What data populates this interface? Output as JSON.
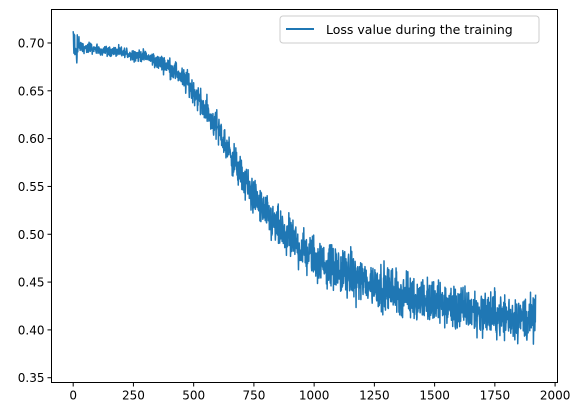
{
  "chart_data": {
    "type": "line",
    "title": "",
    "xlabel": "",
    "ylabel": "",
    "xlim": [
      -90,
      2010
    ],
    "ylim": [
      0.345,
      0.735
    ],
    "xticks": [
      0,
      250,
      500,
      750,
      1000,
      1250,
      1500,
      1750,
      2000
    ],
    "yticks": [
      0.35,
      0.4,
      0.45,
      0.5,
      0.55,
      0.6,
      0.65,
      0.7
    ],
    "ytick_labels": [
      "0.35",
      "0.40",
      "0.45",
      "0.50",
      "0.55",
      "0.60",
      "0.65",
      "0.70"
    ],
    "grid": false,
    "legend_position": "top-right",
    "n_points": 1920,
    "series": [
      {
        "name": "Loss value during the training",
        "color": "#1f77b4",
        "trend_x": [
          0,
          100,
          200,
          300,
          400,
          450,
          500,
          550,
          600,
          650,
          700,
          750,
          800,
          850,
          900,
          950,
          1000,
          1100,
          1200,
          1300,
          1400,
          1500,
          1600,
          1700,
          1800,
          1900,
          1920
        ],
        "trend_y": [
          0.697,
          0.693,
          0.69,
          0.686,
          0.675,
          0.665,
          0.65,
          0.63,
          0.61,
          0.585,
          0.56,
          0.54,
          0.52,
          0.505,
          0.495,
          0.485,
          0.475,
          0.462,
          0.452,
          0.443,
          0.435,
          0.428,
          0.422,
          0.418,
          0.414,
          0.411,
          0.41
        ],
        "noise_x": [
          0,
          300,
          600,
          900,
          1200,
          1920
        ],
        "noise_amp": [
          0.008,
          0.009,
          0.024,
          0.033,
          0.035,
          0.035
        ]
      }
    ]
  }
}
